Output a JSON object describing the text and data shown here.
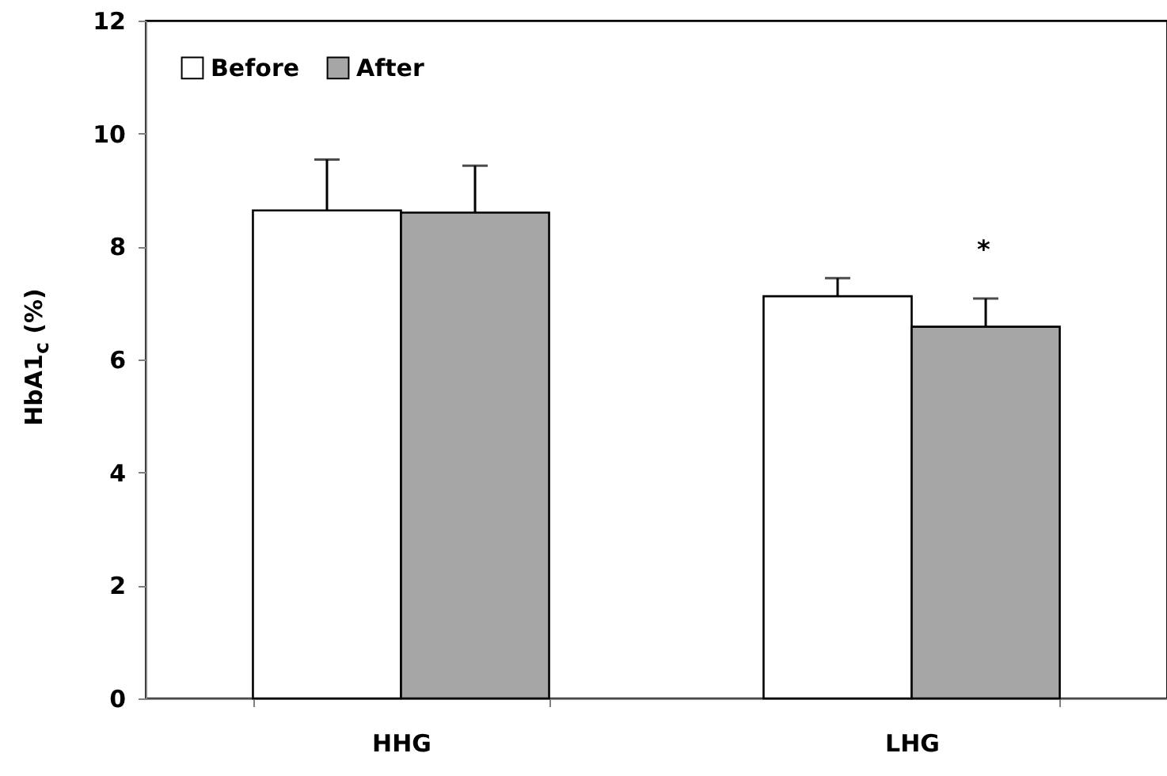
{
  "chart_data": {
    "type": "bar",
    "ylabel": "HbA1$_{c}$ (%)",
    "categories": [
      "HHG",
      "LHG"
    ],
    "series": [
      {
        "name": "Before",
        "color": "#ffffff",
        "values": [
          8.64,
          7.12
        ],
        "errors": [
          [
            8.64,
            9.54
          ],
          [
            7.12,
            7.44
          ]
        ]
      },
      {
        "name": "After",
        "color": "#a6a6a6",
        "values": [
          8.6,
          6.58
        ],
        "errors": [
          [
            8.6,
            9.43
          ],
          [
            6.58,
            7.08
          ]
        ]
      }
    ],
    "ylim": [
      0,
      12
    ],
    "yticks": [
      0,
      2,
      4,
      6,
      8,
      10,
      12
    ],
    "grid": false,
    "legend": "top left",
    "annotations": [
      "*"
    ]
  }
}
